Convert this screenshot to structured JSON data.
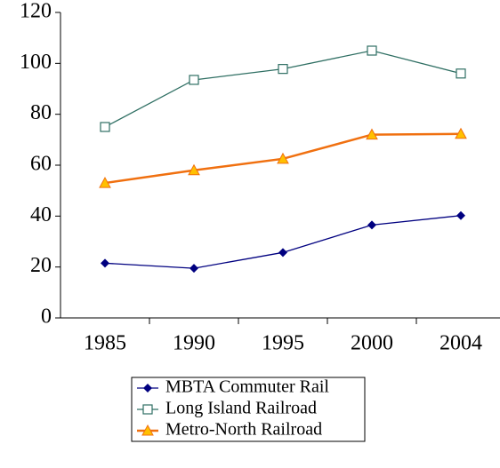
{
  "chart_data": {
    "type": "line",
    "categories": [
      "1985",
      "1990",
      "1995",
      "2000",
      "2004"
    ],
    "series": [
      {
        "name": "MBTA Commuter Rail",
        "color": "#000080",
        "marker": "diamond",
        "values": [
          21.5,
          19.5,
          25.7,
          36.5,
          40.2
        ]
      },
      {
        "name": "Long Island Railroad",
        "color": "#2f6f63",
        "marker": "square",
        "values": [
          75,
          93.5,
          97.8,
          105,
          96
        ]
      },
      {
        "name": "Metro-North Railroad",
        "color": "#f07010",
        "marker": "triangle",
        "values": [
          53,
          58,
          62.5,
          72,
          72.3
        ]
      }
    ],
    "ylim": [
      0,
      120
    ],
    "yticks": [
      0,
      20,
      40,
      60,
      80,
      100,
      120
    ],
    "grid": false,
    "legend": "bottom"
  }
}
